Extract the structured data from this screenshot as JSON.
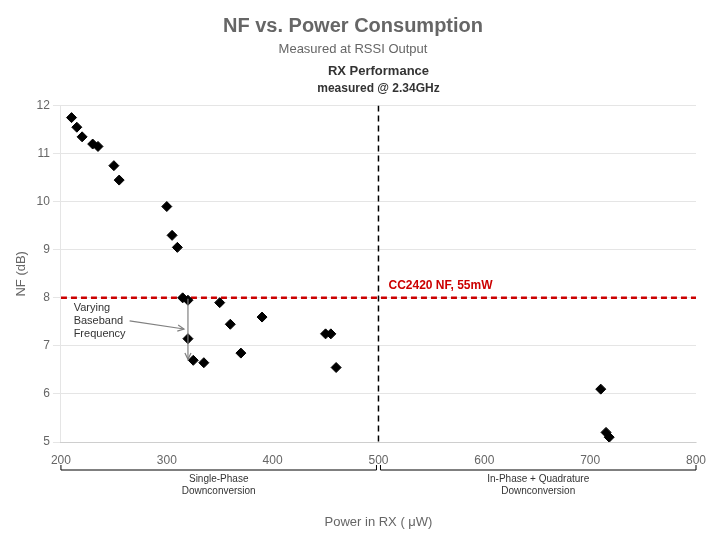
{
  "chart_data": {
    "type": "scatter",
    "title": "NF vs. Power Consumption",
    "subtitle": "Measured at RSSI Output",
    "plot_title": "RX Performance",
    "plot_subtitle": "measured @ 2.34GHz",
    "x_label": "Power in RX ( μW)",
    "y_label": "NF (dB)",
    "xlim": [
      200,
      800
    ],
    "ylim": [
      5,
      12
    ],
    "xticks": [
      200,
      300,
      400,
      500,
      600,
      700,
      800
    ],
    "yticks": [
      5,
      6,
      7,
      8,
      9,
      10,
      11,
      12
    ],
    "grid": "y",
    "x": [
      210,
      215,
      220,
      230,
      235,
      250,
      255,
      300,
      305,
      310,
      315,
      320,
      320,
      325,
      335,
      350,
      360,
      370,
      390,
      450,
      455,
      460,
      710,
      715,
      718
    ],
    "values": [
      11.75,
      11.55,
      11.35,
      11.2,
      11.15,
      10.75,
      10.45,
      9.9,
      9.3,
      9.05,
      8.0,
      7.95,
      7.15,
      6.7,
      6.65,
      7.9,
      7.45,
      6.85,
      7.6,
      7.25,
      7.25,
      6.55,
      6.1,
      5.2,
      5.1
    ],
    "color": "#000000",
    "marker": "diamond",
    "reference_lines": [
      {
        "axis": "y",
        "value": 8.0,
        "label": "CC2420 NF, 55mW",
        "color": "#cc0000",
        "line_style": "dashed"
      },
      {
        "axis": "x",
        "value": 500,
        "color": "#000000",
        "line_style": "dashed"
      }
    ],
    "annotations": [
      {
        "text": "Varying\nBaseband\nFrequency"
      },
      {
        "text": "Single-Phase\nDownconversion"
      },
      {
        "text": "In-Phase + Quadrature\nDownconversion"
      }
    ]
  }
}
